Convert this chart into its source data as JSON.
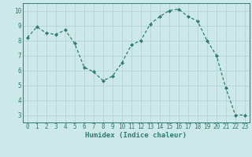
{
  "x": [
    0,
    1,
    2,
    3,
    4,
    5,
    6,
    7,
    8,
    9,
    10,
    11,
    12,
    13,
    14,
    15,
    16,
    17,
    18,
    19,
    20,
    21,
    22,
    23
  ],
  "y": [
    8.2,
    8.9,
    8.5,
    8.4,
    8.7,
    7.8,
    6.2,
    5.9,
    5.3,
    5.6,
    6.5,
    7.7,
    8.0,
    9.1,
    9.6,
    10.0,
    10.1,
    9.6,
    9.3,
    8.0,
    7.0,
    4.8,
    3.0,
    3.0
  ],
  "line_color": "#2e7d6e",
  "marker": "D",
  "marker_size": 2.0,
  "bg_color": "#cde8e8",
  "grid_color": "#afd0d0",
  "axis_color": "#2e7d6e",
  "xlabel": "Humidex (Indice chaleur)",
  "ylim": [
    2.5,
    10.5
  ],
  "xlim": [
    -0.5,
    23.5
  ],
  "yticks": [
    3,
    4,
    5,
    6,
    7,
    8,
    9,
    10
  ],
  "xticks": [
    0,
    1,
    2,
    3,
    4,
    5,
    6,
    7,
    8,
    9,
    10,
    11,
    12,
    13,
    14,
    15,
    16,
    17,
    18,
    19,
    20,
    21,
    22,
    23
  ],
  "label_fontsize": 6.5,
  "tick_fontsize": 5.5,
  "linewidth": 0.9
}
